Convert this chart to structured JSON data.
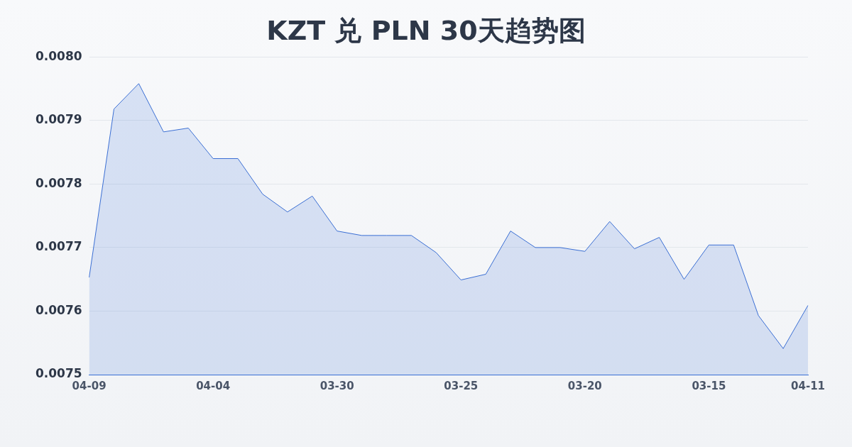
{
  "chart_data": {
    "type": "area",
    "title": "KZT 兑 PLN 30天趋势图",
    "categories": [
      "04-09",
      null,
      null,
      null,
      null,
      "04-04",
      null,
      null,
      null,
      null,
      "03-30",
      null,
      null,
      null,
      null,
      "03-25",
      null,
      null,
      null,
      null,
      "03-20",
      null,
      null,
      null,
      null,
      "03-15",
      null,
      null,
      null,
      "04-11"
    ],
    "series": [
      {
        "color": "#3b6fd4",
        "values": [
          0.007653,
          0.007918,
          0.007958,
          0.007882,
          0.007888,
          0.00784,
          0.00784,
          0.007784,
          0.007756,
          0.007781,
          0.007726,
          0.007719,
          0.007719,
          0.007719,
          0.007692,
          0.007649,
          0.007658,
          0.007726,
          0.0077,
          0.0077,
          0.007694,
          0.007741,
          0.007698,
          0.007716,
          0.00765,
          0.007704,
          0.007704,
          0.007593,
          0.007541,
          0.007609
        ]
      }
    ],
    "ylim": [
      0.0075,
      0.008
    ],
    "yticks": [
      {
        "value": 0.0075,
        "label": "0.0075"
      },
      {
        "value": 0.0076,
        "label": "0.0076"
      },
      {
        "value": 0.0077,
        "label": "0.0077"
      },
      {
        "value": 0.0078,
        "label": "0.0078"
      },
      {
        "value": 0.0079,
        "label": "0.0079"
      },
      {
        "value": 0.008,
        "label": "0.0080"
      }
    ],
    "grid": "y",
    "legend": false,
    "marker": "none"
  }
}
